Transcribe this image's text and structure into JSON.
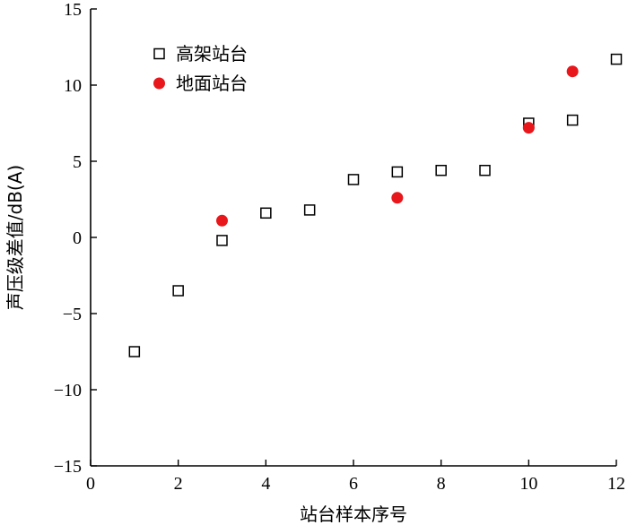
{
  "chart_data": {
    "type": "scatter",
    "xlabel": "站台样本序号",
    "ylabel": "声压级差值/dB(A)",
    "xlim": [
      0,
      12
    ],
    "ylim": [
      -15,
      15
    ],
    "x_ticks": [
      0,
      2,
      4,
      6,
      8,
      10,
      12
    ],
    "y_ticks": [
      -15,
      -10,
      -5,
      0,
      5,
      10,
      15
    ],
    "x_tick_labels": [
      "0",
      "2",
      "4",
      "6",
      "8",
      "10",
      "12"
    ],
    "y_tick_labels": [
      "−15",
      "−10",
      "−5",
      "0",
      "5",
      "10",
      "15"
    ],
    "grid": false,
    "legend_position": "top-left",
    "series": [
      {
        "name": "高架站台",
        "marker": "open-square",
        "color": "#000000",
        "points": [
          {
            "x": 1,
            "y": -7.5
          },
          {
            "x": 2,
            "y": -3.5
          },
          {
            "x": 3,
            "y": -0.2
          },
          {
            "x": 4,
            "y": 1.6
          },
          {
            "x": 5,
            "y": 1.8
          },
          {
            "x": 6,
            "y": 3.8
          },
          {
            "x": 7,
            "y": 4.3
          },
          {
            "x": 8,
            "y": 4.4
          },
          {
            "x": 9,
            "y": 4.4
          },
          {
            "x": 10,
            "y": 7.5
          },
          {
            "x": 11,
            "y": 7.7
          },
          {
            "x": 12,
            "y": 11.7
          }
        ]
      },
      {
        "name": "地面站台",
        "marker": "filled-circle",
        "color": "#e8171b",
        "points": [
          {
            "x": 3,
            "y": 1.1
          },
          {
            "x": 7,
            "y": 2.6
          },
          {
            "x": 10,
            "y": 7.2
          },
          {
            "x": 11,
            "y": 10.9
          }
        ]
      }
    ]
  }
}
